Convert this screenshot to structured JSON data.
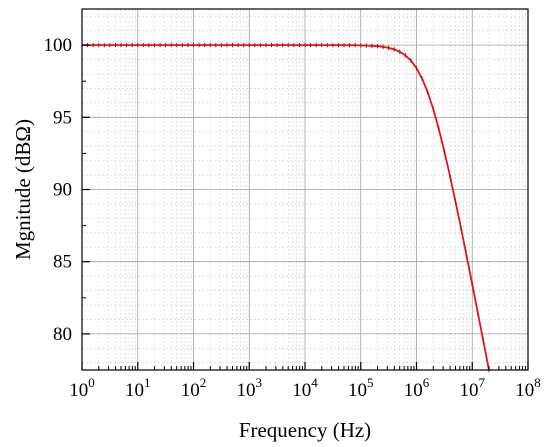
{
  "chart_data": {
    "type": "line",
    "xlabel": "Frequency (Hz)",
    "ylabel": "Mgnitude (dBΩ)",
    "x_scale": "log10",
    "xlim": [
      1,
      100000000
    ],
    "ylim": [
      77.5,
      102.5
    ],
    "x_tick_base": "10",
    "x_tick_exponents": [
      "0",
      "1",
      "2",
      "3",
      "4",
      "5",
      "6",
      "7",
      "8"
    ],
    "y_ticks": [
      "80",
      "85",
      "90",
      "95",
      "100"
    ],
    "grid": true,
    "line_color": "#e8141c",
    "series": [
      {
        "x_log10_start": 0,
        "x_log10_end": 7.3,
        "x_log10_step": 0.1,
        "dc_gain": 100,
        "corner_freq": 1500000,
        "order": 2
      }
    ]
  }
}
